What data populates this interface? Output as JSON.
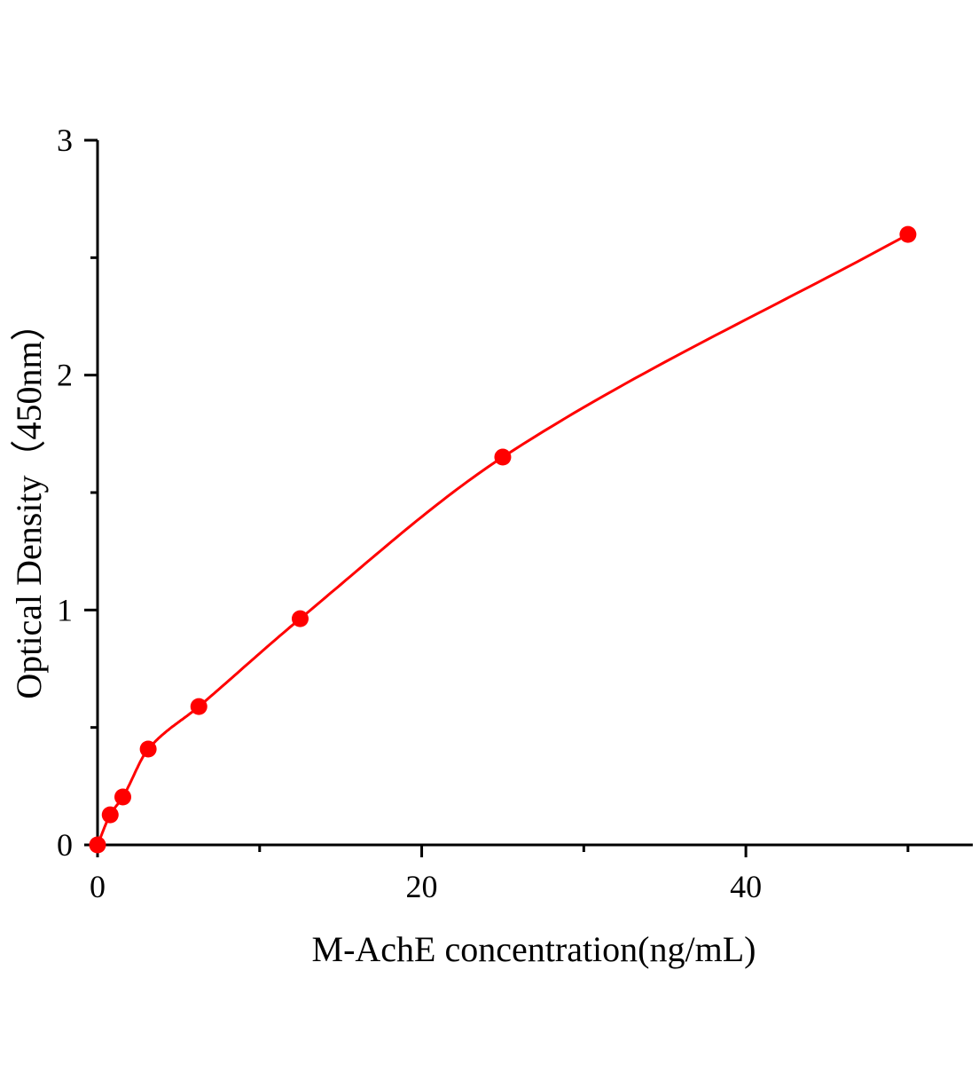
{
  "chart_data": {
    "type": "scatter",
    "title": "",
    "xlabel": "M-AchE concentration(ng/mL)",
    "ylabel": "Optical Density（450nm）",
    "xlim": [
      0,
      54
    ],
    "ylim": [
      0,
      3
    ],
    "x_ticks": [
      0,
      20,
      40
    ],
    "x_minor_ticks": [
      10,
      30,
      50
    ],
    "y_ticks": [
      0,
      1,
      2,
      3
    ],
    "y_minor_ticks": [
      0.5,
      1.5,
      2.5
    ],
    "grid": false,
    "color": "#ff0000",
    "series": [
      {
        "x": [
          0,
          0.78,
          1.56,
          3.125,
          6.25,
          12.5,
          25,
          50
        ],
        "y": [
          0.0,
          0.128,
          0.204,
          0.408,
          0.589,
          0.963,
          1.651,
          2.599
        ],
        "fit_line": true
      }
    ]
  }
}
